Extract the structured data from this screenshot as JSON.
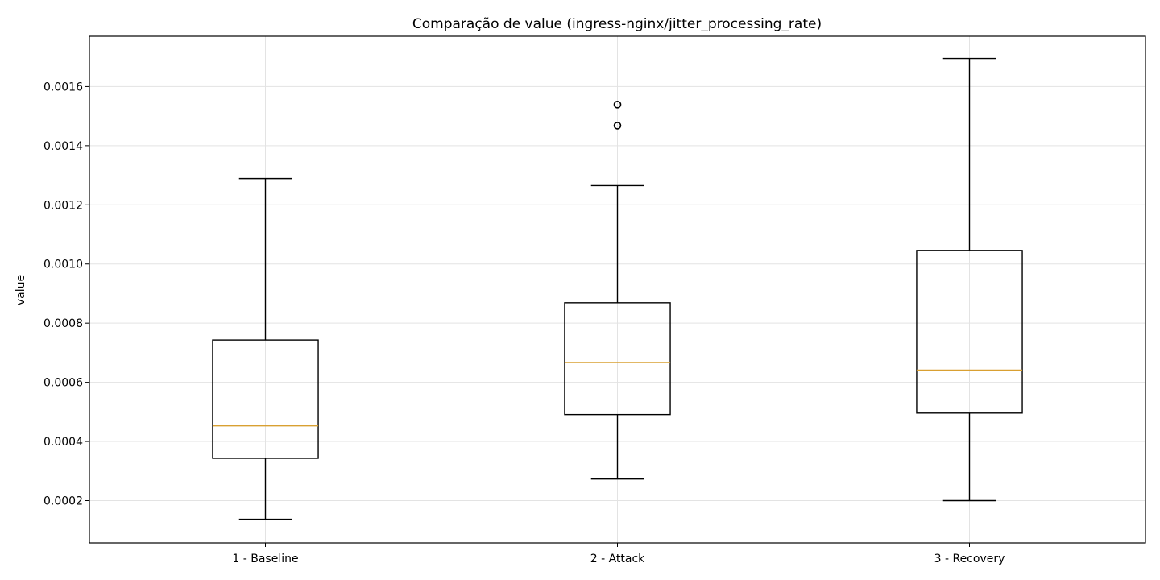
{
  "chart_data": {
    "type": "box",
    "title": "Comparação de value (ingress-nginx/jitter_processing_rate)",
    "xlabel": "",
    "ylabel": "value",
    "ylim": [
      5.7e-05,
      0.00177
    ],
    "yticks": [
      0.0002,
      0.0004,
      0.0006,
      0.0008,
      0.001,
      0.0012,
      0.0014,
      0.0016
    ],
    "ytick_labels": [
      "0.0002",
      "0.0004",
      "0.0006",
      "0.0008",
      "0.0010",
      "0.0012",
      "0.0014",
      "0.0016"
    ],
    "grid": true,
    "categories": [
      "1 - Baseline",
      "2 - Attack",
      "3 - Recovery"
    ],
    "boxes": [
      {
        "whislo": 0.000137,
        "q1": 0.000343,
        "med": 0.000453,
        "q3": 0.000743,
        "whishi": 0.001289,
        "fliers": []
      },
      {
        "whislo": 0.000273,
        "q1": 0.000491,
        "med": 0.000667,
        "q3": 0.000869,
        "whishi": 0.001265,
        "fliers": [
          0.001539,
          0.001468
        ]
      },
      {
        "whislo": 0.0002,
        "q1": 0.000496,
        "med": 0.000641,
        "q3": 0.001046,
        "whishi": 0.001695,
        "fliers": []
      }
    ]
  }
}
